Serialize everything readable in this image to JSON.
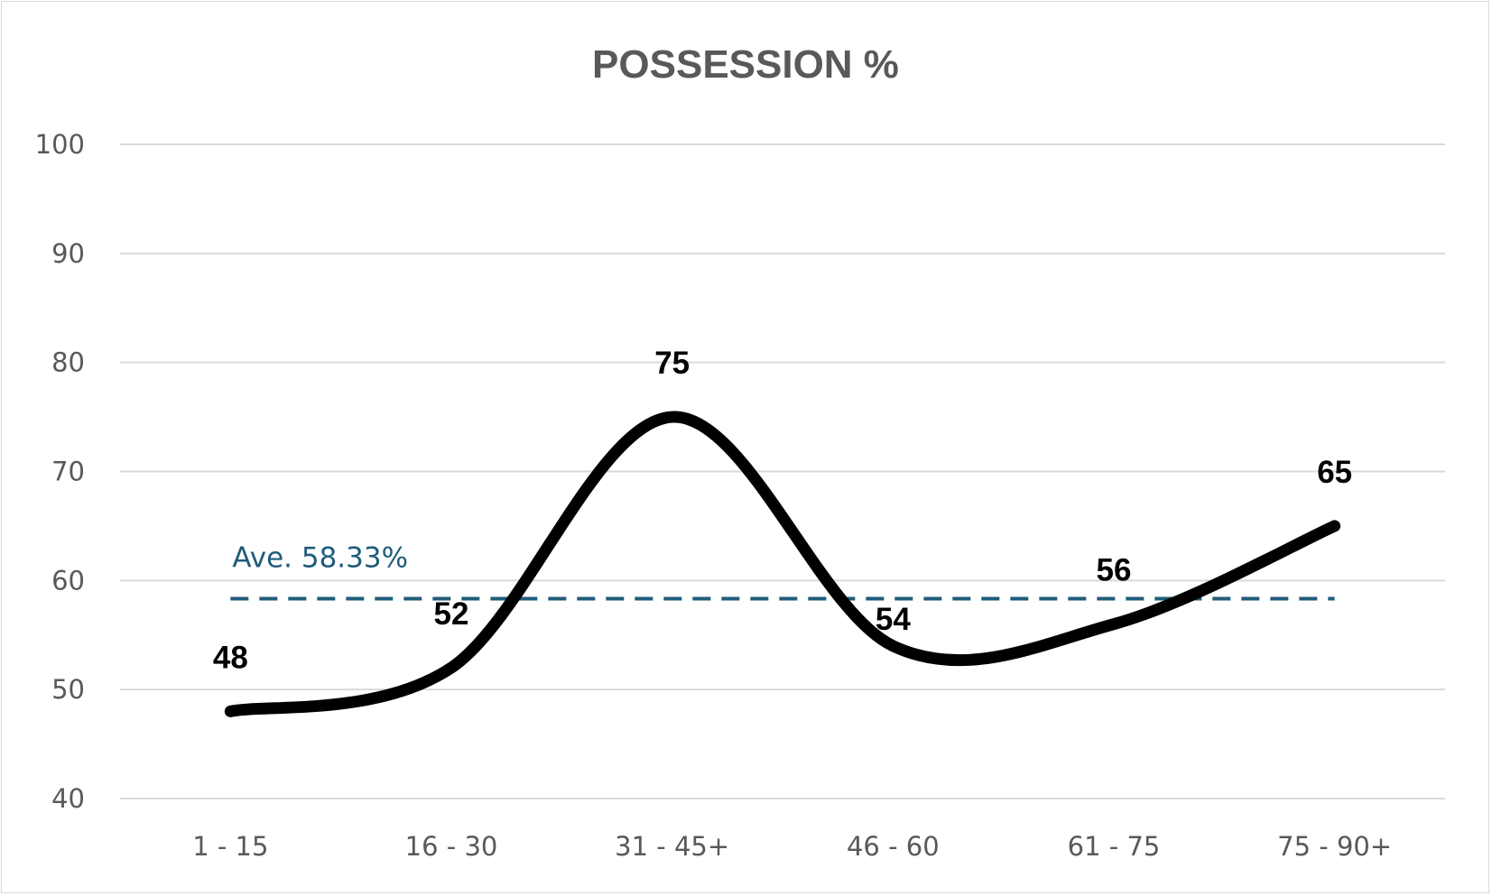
{
  "chart_data": {
    "type": "line",
    "title": "POSSESSION %",
    "xlabel": "",
    "ylabel": "",
    "categories": [
      "1 - 15",
      "16 - 30",
      "31 - 45+",
      "46 - 60",
      "61 - 75",
      "75 - 90+"
    ],
    "series": [
      {
        "values": [
          48,
          52,
          75,
          54,
          56,
          65
        ],
        "color": "#000000",
        "smooth": true
      }
    ],
    "average_line": {
      "value": 58.33,
      "label": "Ave. 58.33%",
      "color": "#1f5c7a",
      "style": "dashed"
    },
    "ylim": [
      40,
      100
    ],
    "yticks": [
      40,
      50,
      60,
      70,
      80,
      90,
      100
    ],
    "grid": true,
    "legend": "none",
    "data_labels": true,
    "colors": {
      "gridline": "#d9d9d9",
      "text": "#595959"
    }
  }
}
